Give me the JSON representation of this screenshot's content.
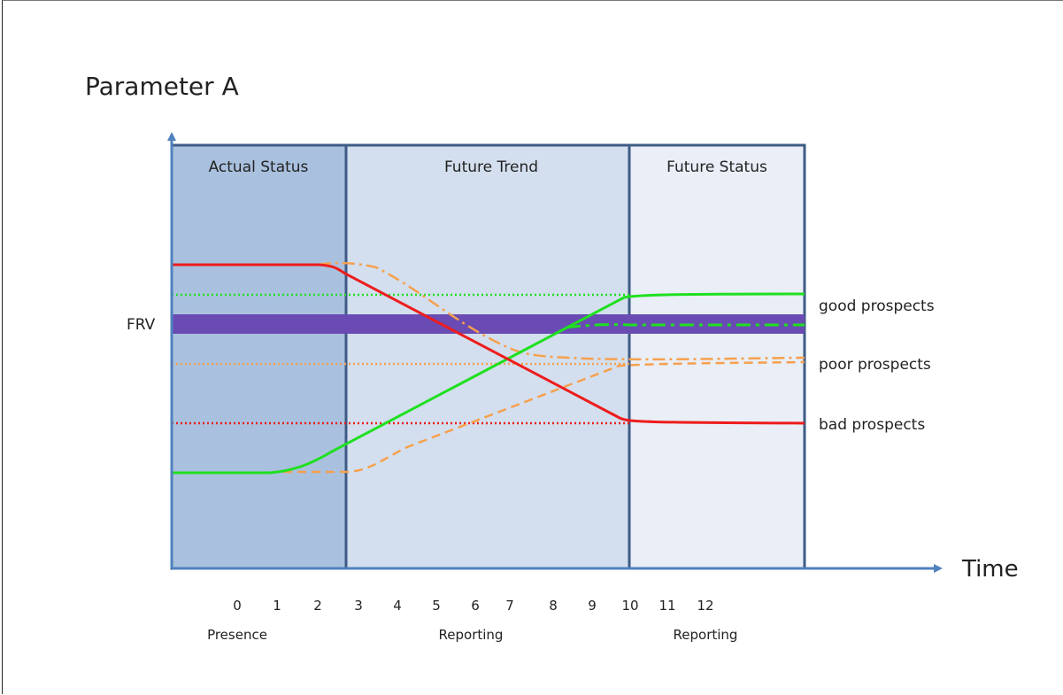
{
  "title": "Parameter A",
  "x_axis_label": "Time",
  "y_reference_label": "FRV",
  "zones": [
    {
      "label": "Actual Status",
      "fill": "#a9c1de"
    },
    {
      "label": "Future Trend",
      "fill": "#d3dfee"
    },
    {
      "label": "Future Status",
      "fill": "#e9eef7"
    }
  ],
  "x_ticks": [
    "0",
    "1",
    "2",
    "3",
    "4",
    "5",
    "6",
    "7",
    "8",
    "9",
    "10",
    "11",
    "12"
  ],
  "period_labels": [
    "Presence",
    "Reporting",
    "Reporting"
  ],
  "prospect_labels": [
    "good prospects",
    "poor prospects",
    "bad prospects"
  ],
  "colors": {
    "zone_border": "#3d5b85",
    "axis": "#4f81bd",
    "frv_band": "#6a4bb4",
    "green": "#1fe01f",
    "orange": "#f6a04d",
    "red": "#ee1c1c"
  }
}
